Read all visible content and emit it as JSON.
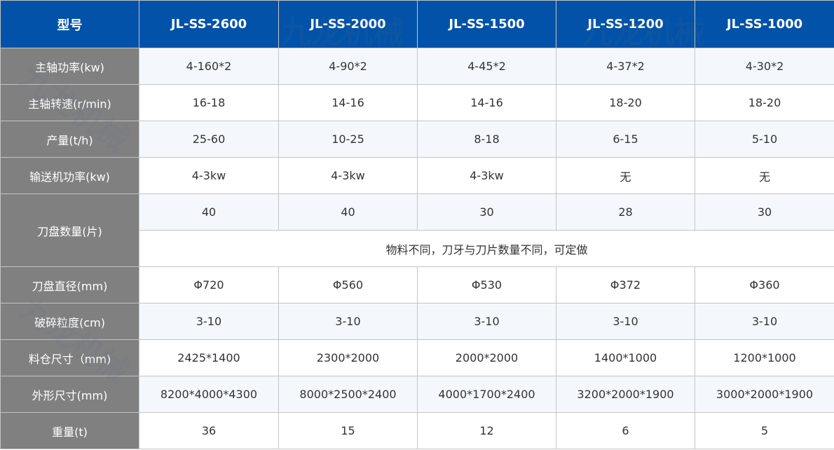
{
  "header": {
    "label": "型号",
    "models": [
      "JL-SS-2600",
      "JL-SS-2000",
      "JL-SS-1500",
      "JL-SS-1200",
      "JL-SS-1000"
    ]
  },
  "rows": [
    {
      "label": "主轴功率(kw)",
      "values": [
        "4-160*2",
        "4-90*2",
        "4-45*2",
        "4-37*2",
        "4-30*2"
      ]
    },
    {
      "label": "主轴转速(r/min)",
      "values": [
        "16-18",
        "14-16",
        "14-16",
        "18-20",
        "18-20"
      ]
    },
    {
      "label": "产量(t/h)",
      "values": [
        "25-60",
        "10-25",
        "8-18",
        "6-15",
        "5-10"
      ]
    },
    {
      "label": "输送机功率(kw)",
      "values": [
        "4-3kw",
        "4-3kw",
        "4-3kw",
        "无",
        "无"
      ]
    },
    {
      "label": "刀盘数量(片)",
      "values": [
        "40",
        "40",
        "30",
        "28",
        "30"
      ],
      "note": "物料不同，刀牙与刀片数量不同，可定做"
    },
    {
      "label": "刀盘直径(mm)",
      "values": [
        "Φ720",
        "Φ560",
        "Φ530",
        "Φ372",
        "Φ360"
      ]
    },
    {
      "label": "破碎粒度(cm)",
      "values": [
        "3-10",
        "3-10",
        "3-10",
        "3-10",
        "3-10"
      ]
    },
    {
      "label": "料仓尺寸（mm)",
      "values": [
        "2425*1400",
        "2300*2000",
        "2000*2000",
        "1400*1000",
        "1200*1000"
      ]
    },
    {
      "label": "外形尺寸(mm)",
      "values": [
        "8200*4000*4300",
        "8000*2500*2400",
        "4000*1700*2400",
        "3200*2000*1900",
        "3000*2000*1900"
      ]
    },
    {
      "label": "重量(t)",
      "values": [
        "36",
        "15",
        "12",
        "6",
        "5"
      ]
    }
  ],
  "watermark": "九龙机械 KOWLOONMACHINERY",
  "colors": {
    "header": "#0152a8",
    "label_column": "#808080",
    "alt_row": "#f4f8fd",
    "border": "#c4c4c4"
  }
}
